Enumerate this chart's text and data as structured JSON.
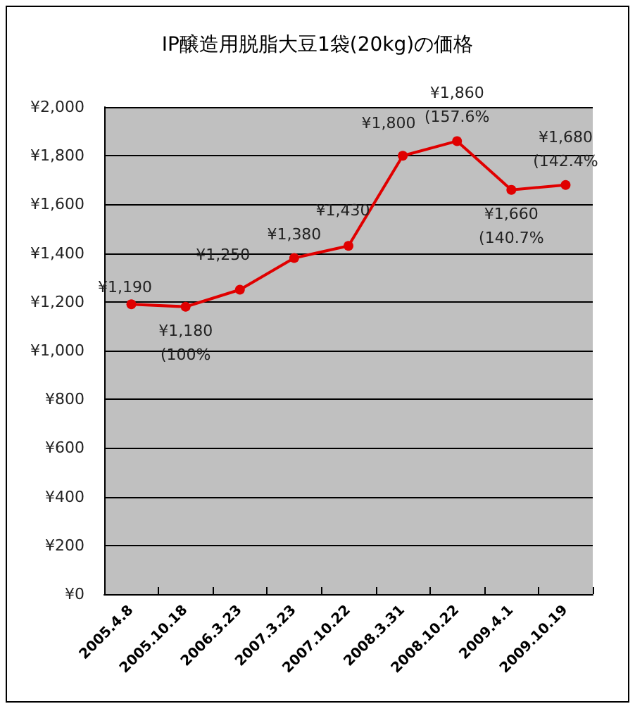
{
  "chart_data": {
    "type": "line",
    "title": "IP醸造用脱脂大豆1袋(20kg)の価格",
    "categories": [
      "2005.4.8",
      "2005.10.18",
      "2006.3.23",
      "2007.3.23",
      "2007.10.22",
      "2008.3.31",
      "2008.10.22",
      "2009.4.1",
      "2009.10.19"
    ],
    "series": [
      {
        "color": "#e00000",
        "values": [
          1190,
          1180,
          1250,
          1380,
          1430,
          1800,
          1860,
          1660,
          1680
        ],
        "value_labels": [
          "¥1,190",
          "¥1,180\n(100%",
          "¥1,250",
          "¥1,380",
          "¥1,430",
          "¥1,800",
          "¥1,860\n(157.6%",
          "¥1,660\n(140.7%",
          "¥1,680\n(142.4%"
        ]
      }
    ],
    "ylim": [
      0,
      2000
    ],
    "yticks": [
      {
        "value": 0,
        "label": "¥0"
      },
      {
        "value": 200,
        "label": "¥200"
      },
      {
        "value": 400,
        "label": "¥400"
      },
      {
        "value": 600,
        "label": "¥600"
      },
      {
        "value": 800,
        "label": "¥800"
      },
      {
        "value": 1000,
        "label": "¥1,000"
      },
      {
        "value": 1200,
        "label": "¥1,200"
      },
      {
        "value": 1400,
        "label": "¥1,400"
      },
      {
        "value": 1600,
        "label": "¥1,600"
      },
      {
        "value": 1800,
        "label": "¥1,800"
      },
      {
        "value": 2000,
        "label": "¥2,000"
      }
    ],
    "grid": "y",
    "marker": "circle",
    "line_style": "solid"
  }
}
